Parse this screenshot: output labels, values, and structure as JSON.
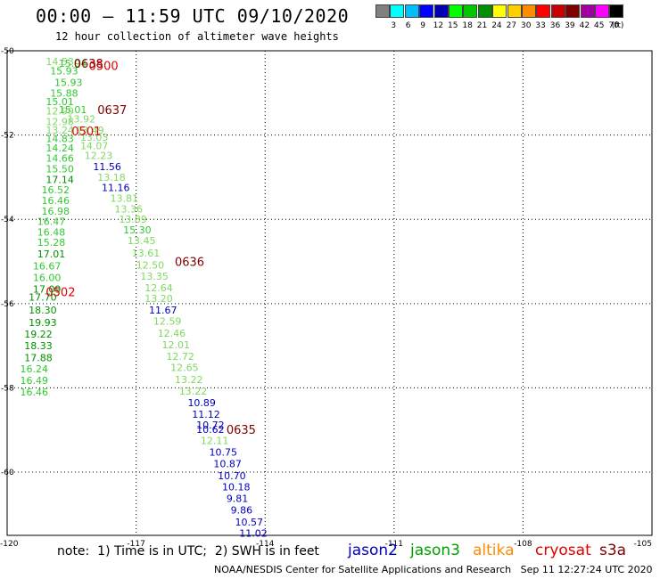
{
  "header": {
    "title": "00:00 – 11:59 UTC 09/10/2020",
    "subtitle": "12 hour collection of altimeter wave heights"
  },
  "colorbar": {
    "unit": "(ft)",
    "bins": [
      {
        "label": "",
        "color": "#808080"
      },
      {
        "label": "3",
        "color": "#00ffff"
      },
      {
        "label": "6",
        "color": "#00bfff"
      },
      {
        "label": "9",
        "color": "#0000ff"
      },
      {
        "label": "12",
        "color": "#0000b0"
      },
      {
        "label": "15",
        "color": "#00ff00"
      },
      {
        "label": "18",
        "color": "#00c800"
      },
      {
        "label": "21",
        "color": "#009000"
      },
      {
        "label": "24",
        "color": "#ffff00"
      },
      {
        "label": "27",
        "color": "#ffd000"
      },
      {
        "label": "30",
        "color": "#ff8c00"
      },
      {
        "label": "33",
        "color": "#ff0000"
      },
      {
        "label": "36",
        "color": "#c80000"
      },
      {
        "label": "39",
        "color": "#800000"
      },
      {
        "label": "42",
        "color": "#a000a0"
      },
      {
        "label": "45",
        "color": "#ff00ff"
      },
      {
        "label": "70",
        "color": "#000000"
      }
    ]
  },
  "map": {
    "lat_labels": [
      "-50",
      "-52",
      "-54",
      "-56",
      "-58",
      "-60"
    ],
    "lon_labels": [
      "-120",
      "-117",
      "-114",
      "-111",
      "-108",
      "-105"
    ],
    "points": [
      {
        "lat": -50.25,
        "lon": -119.1,
        "v": "14.53",
        "c": "#7fd860"
      },
      {
        "lat": -50.3,
        "lon": -118.8,
        "v": "15.94",
        "c": "#32c832"
      },
      {
        "lat": -50.48,
        "lon": -119.0,
        "v": "15.93",
        "c": "#32c832"
      },
      {
        "lat": -50.75,
        "lon": -118.9,
        "v": "15.93",
        "c": "#32c832"
      },
      {
        "lat": -51.0,
        "lon": -119.0,
        "v": "15.88",
        "c": "#32c832"
      },
      {
        "lat": -51.2,
        "lon": -119.1,
        "v": "15.01",
        "c": "#32c832"
      },
      {
        "lat": -51.4,
        "lon": -118.8,
        "v": "15.01",
        "c": "#32c832"
      },
      {
        "lat": -51.43,
        "lon": -119.1,
        "v": "12.99",
        "c": "#7fd860"
      },
      {
        "lat": -51.62,
        "lon": -118.6,
        "v": "13.92",
        "c": "#7fd860"
      },
      {
        "lat": -51.68,
        "lon": -119.1,
        "v": "12.98",
        "c": "#7fd860"
      },
      {
        "lat": -51.88,
        "lon": -119.1,
        "v": "13.24",
        "c": "#7fd860"
      },
      {
        "lat": -51.88,
        "lon": -118.4,
        "v": "13.49",
        "c": "#7fd860"
      },
      {
        "lat": -52.05,
        "lon": -118.3,
        "v": "13.03",
        "c": "#7fd860"
      },
      {
        "lat": -52.08,
        "lon": -119.1,
        "v": "14.83",
        "c": "#32c832"
      },
      {
        "lat": -52.25,
        "lon": -118.3,
        "v": "14.07",
        "c": "#7fd860"
      },
      {
        "lat": -52.3,
        "lon": -119.1,
        "v": "14.24",
        "c": "#32c832"
      },
      {
        "lat": -52.48,
        "lon": -118.2,
        "v": "12.23",
        "c": "#7fd860"
      },
      {
        "lat": -52.55,
        "lon": -119.1,
        "v": "14.66",
        "c": "#32c832"
      },
      {
        "lat": -52.75,
        "lon": -118.0,
        "v": "11.56",
        "c": "#0000c0"
      },
      {
        "lat": -52.8,
        "lon": -119.1,
        "v": "15.50",
        "c": "#32c832"
      },
      {
        "lat": -53.0,
        "lon": -117.9,
        "v": "13.18",
        "c": "#7fd860"
      },
      {
        "lat": -53.05,
        "lon": -119.1,
        "v": "17.14",
        "c": "#009000"
      },
      {
        "lat": -53.25,
        "lon": -117.8,
        "v": "11.16",
        "c": "#0000c0"
      },
      {
        "lat": -53.3,
        "lon": -119.2,
        "v": "16.52",
        "c": "#32c832"
      },
      {
        "lat": -53.5,
        "lon": -117.6,
        "v": "13.81",
        "c": "#7fd860"
      },
      {
        "lat": -53.55,
        "lon": -119.2,
        "v": "16.46",
        "c": "#32c832"
      },
      {
        "lat": -53.75,
        "lon": -117.5,
        "v": "13.36",
        "c": "#7fd860"
      },
      {
        "lat": -53.8,
        "lon": -119.2,
        "v": "16.98",
        "c": "#32c832"
      },
      {
        "lat": -54.0,
        "lon": -117.4,
        "v": "13.89",
        "c": "#7fd860"
      },
      {
        "lat": -54.05,
        "lon": -119.3,
        "v": "16.47",
        "c": "#32c832"
      },
      {
        "lat": -54.25,
        "lon": -117.3,
        "v": "15.30",
        "c": "#32c832"
      },
      {
        "lat": -54.3,
        "lon": -119.3,
        "v": "16.48",
        "c": "#32c832"
      },
      {
        "lat": -54.5,
        "lon": -117.2,
        "v": "13.45",
        "c": "#7fd860"
      },
      {
        "lat": -54.55,
        "lon": -119.3,
        "v": "15.28",
        "c": "#32c832"
      },
      {
        "lat": -54.8,
        "lon": -117.1,
        "v": "13.61",
        "c": "#7fd860"
      },
      {
        "lat": -54.82,
        "lon": -119.3,
        "v": "17.01",
        "c": "#009000"
      },
      {
        "lat": -55.1,
        "lon": -119.4,
        "v": "16.67",
        "c": "#32c832"
      },
      {
        "lat": -55.08,
        "lon": -117.0,
        "v": "12.50",
        "c": "#7fd860"
      },
      {
        "lat": -55.35,
        "lon": -116.9,
        "v": "13.35",
        "c": "#7fd860"
      },
      {
        "lat": -55.38,
        "lon": -119.4,
        "v": "16.00",
        "c": "#32c832"
      },
      {
        "lat": -55.62,
        "lon": -116.8,
        "v": "12.64",
        "c": "#7fd860"
      },
      {
        "lat": -55.65,
        "lon": -119.4,
        "v": "17.09",
        "c": "#009000"
      },
      {
        "lat": -55.85,
        "lon": -119.5,
        "v": "17.70",
        "c": "#009000"
      },
      {
        "lat": -55.88,
        "lon": -116.8,
        "v": "13.20",
        "c": "#7fd860"
      },
      {
        "lat": -56.15,
        "lon": -116.7,
        "v": "11.67",
        "c": "#0000c0"
      },
      {
        "lat": -56.15,
        "lon": -119.5,
        "v": "18.30",
        "c": "#009000"
      },
      {
        "lat": -56.42,
        "lon": -116.6,
        "v": "12.59",
        "c": "#7fd860"
      },
      {
        "lat": -56.45,
        "lon": -119.5,
        "v": "19.93",
        "c": "#009000"
      },
      {
        "lat": -56.7,
        "lon": -116.5,
        "v": "12.46",
        "c": "#7fd860"
      },
      {
        "lat": -56.72,
        "lon": -119.6,
        "v": "19.22",
        "c": "#009000"
      },
      {
        "lat": -56.98,
        "lon": -116.4,
        "v": "12.01",
        "c": "#7fd860"
      },
      {
        "lat": -57.0,
        "lon": -119.6,
        "v": "18.33",
        "c": "#009000"
      },
      {
        "lat": -57.25,
        "lon": -116.3,
        "v": "12.72",
        "c": "#7fd860"
      },
      {
        "lat": -57.28,
        "lon": -119.6,
        "v": "17.88",
        "c": "#009000"
      },
      {
        "lat": -57.52,
        "lon": -116.2,
        "v": "12.65",
        "c": "#7fd860"
      },
      {
        "lat": -57.55,
        "lon": -119.7,
        "v": "16.24",
        "c": "#32c832"
      },
      {
        "lat": -57.8,
        "lon": -116.1,
        "v": "13.22",
        "c": "#7fd860"
      },
      {
        "lat": -57.82,
        "lon": -119.7,
        "v": "16.49",
        "c": "#32c832"
      },
      {
        "lat": -58.08,
        "lon": -116.0,
        "v": "13.22",
        "c": "#7fd860"
      },
      {
        "lat": -58.1,
        "lon": -119.7,
        "v": "16.46",
        "c": "#32c832"
      },
      {
        "lat": -58.35,
        "lon": -115.8,
        "v": "10.89",
        "c": "#0000c0"
      },
      {
        "lat": -58.62,
        "lon": -115.7,
        "v": "11.12",
        "c": "#0000c0"
      },
      {
        "lat": -58.88,
        "lon": -115.6,
        "v": "10.72",
        "c": "#0000c0"
      },
      {
        "lat": -58.98,
        "lon": -115.6,
        "v": "10.62",
        "c": "#0000c0"
      },
      {
        "lat": -59.25,
        "lon": -115.5,
        "v": "12.11",
        "c": "#7fd860"
      },
      {
        "lat": -59.52,
        "lon": -115.3,
        "v": "10.75",
        "c": "#0000c0"
      },
      {
        "lat": -59.8,
        "lon": -115.2,
        "v": "10.87",
        "c": "#0000c0"
      },
      {
        "lat": -60.08,
        "lon": -115.1,
        "v": "10.70",
        "c": "#0000c0"
      },
      {
        "lat": -60.35,
        "lon": -115.0,
        "v": "10.18",
        "c": "#0000c0"
      },
      {
        "lat": -60.62,
        "lon": -114.9,
        "v": "9.81",
        "c": "#0000c0"
      },
      {
        "lat": -60.9,
        "lon": -114.8,
        "v": "9.86",
        "c": "#0000c0"
      },
      {
        "lat": -61.18,
        "lon": -114.7,
        "v": "10.57",
        "c": "#0000c0"
      },
      {
        "lat": -61.45,
        "lon": -114.6,
        "v": "11.02",
        "c": "#0000c0"
      }
    ],
    "time_labels": [
      {
        "lat": -50.3,
        "lon": -118.45,
        "t": "0638",
        "c": "#800000"
      },
      {
        "lat": -50.35,
        "lon": -118.1,
        "t": "0500",
        "c": "#e00000"
      },
      {
        "lat": -51.4,
        "lon": -117.9,
        "t": "0637",
        "c": "#800000"
      },
      {
        "lat": -51.9,
        "lon": -118.5,
        "t": "0501",
        "c": "#e00000"
      },
      {
        "lat": -55.0,
        "lon": -116.1,
        "t": "0636",
        "c": "#800000"
      },
      {
        "lat": -55.72,
        "lon": -119.1,
        "t": "0502",
        "c": "#e00000"
      },
      {
        "lat": -58.98,
        "lon": -114.9,
        "t": "0635",
        "c": "#800000"
      }
    ]
  },
  "footer": {
    "note": "note:  1) Time is in UTC;  2) SWH is in feet",
    "satellites": [
      {
        "name": "jason2",
        "color": "#0000c0"
      },
      {
        "name": "jason3",
        "color": "#00a000"
      },
      {
        "name": "altika",
        "color": "#ff8c00"
      },
      {
        "name": "cryosat",
        "color": "#e00000"
      },
      {
        "name": "s3a",
        "color": "#800000"
      }
    ],
    "credit": "NOAA/NESDIS Center for Satellite Applications and Research",
    "timestamp": "Sep 11 12:27:24 UTC 2020"
  }
}
